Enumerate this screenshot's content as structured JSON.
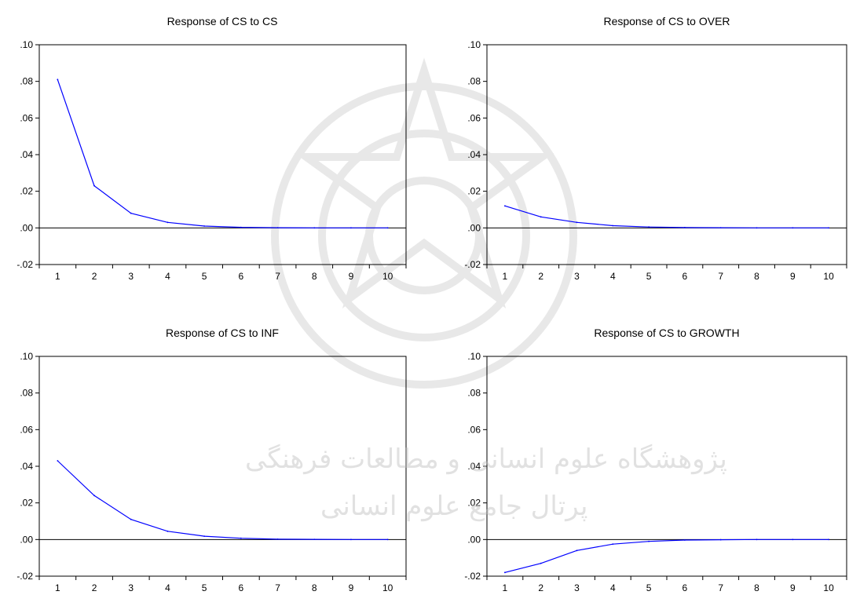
{
  "watermark": {
    "line1": "پژوهشگاه علوم انسانی و مطالعات فرهنگی",
    "line2": "پرتال جامع علوم انسانی"
  },
  "colors": {
    "series": "#0000ff",
    "axis": "#000000",
    "zero_line": "#000000"
  },
  "chart_data": [
    {
      "type": "line",
      "title": "Response of CS to CS",
      "x": [
        1,
        2,
        3,
        4,
        5,
        6,
        7,
        8,
        9,
        10
      ],
      "series": [
        {
          "values": [
            0.081,
            0.023,
            0.008,
            0.003,
            0.001,
            0.0003,
            0.0001,
            0.0,
            0.0,
            0.0
          ]
        }
      ],
      "ylim": [
        -0.02,
        0.1
      ],
      "yticks": [
        ".10",
        ".08",
        ".06",
        ".04",
        ".02",
        ".00",
        "-.02"
      ],
      "xticks": [
        "1",
        "2",
        "3",
        "4",
        "5",
        "6",
        "7",
        "8",
        "9",
        "10"
      ],
      "zero_line": true
    },
    {
      "type": "line",
      "title": "Response of CS to OVER",
      "x": [
        1,
        2,
        3,
        4,
        5,
        6,
        7,
        8,
        9,
        10
      ],
      "series": [
        {
          "values": [
            0.012,
            0.006,
            0.003,
            0.0012,
            0.0005,
            0.0002,
            0.0001,
            0.0,
            0.0,
            0.0
          ]
        }
      ],
      "ylim": [
        -0.02,
        0.1
      ],
      "yticks": [
        ".10",
        ".08",
        ".06",
        ".04",
        ".02",
        ".00",
        "-.02"
      ],
      "xticks": [
        "1",
        "2",
        "3",
        "4",
        "5",
        "6",
        "7",
        "8",
        "9",
        "10"
      ],
      "zero_line": true
    },
    {
      "type": "line",
      "title": "Response of CS to INF",
      "x": [
        1,
        2,
        3,
        4,
        5,
        6,
        7,
        8,
        9,
        10
      ],
      "series": [
        {
          "values": [
            0.043,
            0.024,
            0.011,
            0.0045,
            0.0018,
            0.0007,
            0.0002,
            0.0001,
            0.0,
            0.0
          ]
        }
      ],
      "ylim": [
        -0.02,
        0.1
      ],
      "yticks": [
        ".10",
        ".08",
        ".06",
        ".04",
        ".02",
        ".00",
        "-.02"
      ],
      "xticks": [
        "1",
        "2",
        "3",
        "4",
        "5",
        "6",
        "7",
        "8",
        "9",
        "10"
      ],
      "zero_line": true
    },
    {
      "type": "line",
      "title": "Response of CS to GROWTH",
      "x": [
        1,
        2,
        3,
        4,
        5,
        6,
        7,
        8,
        9,
        10
      ],
      "series": [
        {
          "values": [
            -0.018,
            -0.013,
            -0.006,
            -0.0025,
            -0.001,
            -0.0003,
            -0.0001,
            0.0,
            0.0,
            0.0
          ]
        }
      ],
      "ylim": [
        -0.02,
        0.1
      ],
      "yticks": [
        ".10",
        ".08",
        ".06",
        ".04",
        ".02",
        ".00",
        "-.02"
      ],
      "xticks": [
        "1",
        "2",
        "3",
        "4",
        "5",
        "6",
        "7",
        "8",
        "9",
        "10"
      ],
      "zero_line": true
    }
  ]
}
